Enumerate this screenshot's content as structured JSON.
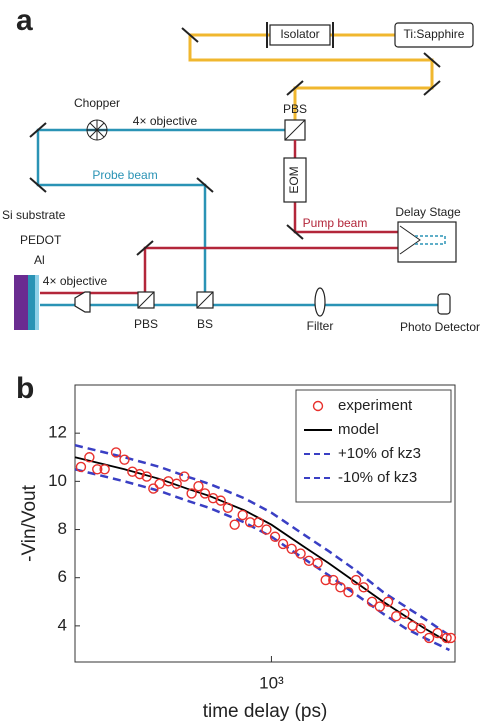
{
  "diagram": {
    "panel_label": "a",
    "labels": {
      "isolator": "Isolator",
      "laser": "Ti:Sapphire",
      "chopper": "Chopper",
      "objective_top": "4× objective",
      "pbs_top": "PBS",
      "eom": "EOM",
      "probe_beam": "Probe beam",
      "pump_beam": "Pump beam",
      "delay_stage": "Delay Stage",
      "substrate": "Si substrate",
      "pedot": "PEDOT",
      "al": "Al",
      "objective_bottom": "4× objective",
      "pbs_bottom": "PBS",
      "bs": "BS",
      "filter": "Filter",
      "detector": "Photo Detector"
    }
  },
  "chart_data": {
    "type": "line",
    "panel_label": "b",
    "xlabel": "time delay (ps)",
    "ylabel": "-Vin/Vout",
    "xscale": "log",
    "xlim": [
      200,
      4500
    ],
    "xticks": [
      {
        "value": 1000,
        "label": "10³"
      }
    ],
    "ylim": [
      2.5,
      14
    ],
    "yticks": [
      4,
      6,
      8,
      10,
      12
    ],
    "legend": "upper right",
    "series": [
      {
        "name": "experiment",
        "color": "#e8302c",
        "style": "markers",
        "x": [
          210,
          225,
          240,
          255,
          280,
          300,
          320,
          340,
          360,
          380,
          400,
          430,
          460,
          490,
          520,
          550,
          580,
          620,
          660,
          700,
          740,
          790,
          840,
          900,
          960,
          1030,
          1100,
          1180,
          1270,
          1360,
          1460,
          1560,
          1660,
          1760,
          1880,
          2000,
          2130,
          2280,
          2430,
          2600,
          2780,
          2970,
          3180,
          3400,
          3640,
          3900,
          4200,
          4350
        ],
        "values": [
          10.6,
          11.0,
          10.5,
          10.5,
          11.2,
          10.9,
          10.4,
          10.3,
          10.2,
          9.7,
          9.9,
          10.0,
          9.9,
          10.2,
          9.5,
          9.8,
          9.5,
          9.3,
          9.2,
          8.9,
          8.2,
          8.6,
          8.3,
          8.3,
          8.0,
          7.7,
          7.4,
          7.2,
          7.0,
          6.7,
          6.6,
          5.9,
          5.9,
          5.6,
          5.4,
          5.9,
          5.6,
          5.0,
          4.8,
          5.0,
          4.4,
          4.5,
          4.0,
          3.9,
          3.5,
          3.7,
          3.5,
          3.5
        ]
      },
      {
        "name": "model",
        "color": "#000000",
        "style": "solid",
        "x": [
          200,
          300,
          400,
          500,
          600,
          800,
          1000,
          1300,
          1600,
          2000,
          2500,
          3000,
          3500,
          4300
        ],
        "values": [
          11.0,
          10.5,
          10.1,
          9.7,
          9.4,
          8.8,
          8.2,
          7.3,
          6.6,
          5.8,
          5.0,
          4.4,
          3.9,
          3.3
        ]
      },
      {
        "name": "+10% of kz3",
        "color": "#3a3fc4",
        "style": "dashed",
        "x": [
          200,
          300,
          400,
          500,
          600,
          800,
          1000,
          1300,
          1600,
          2000,
          2500,
          3000,
          3500,
          4300
        ],
        "values": [
          11.5,
          11.0,
          10.6,
          10.2,
          9.9,
          9.3,
          8.7,
          7.8,
          7.1,
          6.3,
          5.4,
          4.8,
          4.3,
          3.6
        ]
      },
      {
        "name": "-10% of kz3",
        "color": "#3a3fc4",
        "style": "dashed",
        "x": [
          200,
          300,
          400,
          500,
          600,
          800,
          1000,
          1300,
          1600,
          2000,
          2500,
          3000,
          3500,
          4300
        ],
        "values": [
          10.5,
          10.0,
          9.6,
          9.2,
          8.9,
          8.3,
          7.7,
          6.8,
          6.1,
          5.3,
          4.5,
          3.9,
          3.5,
          3.0
        ]
      }
    ]
  }
}
